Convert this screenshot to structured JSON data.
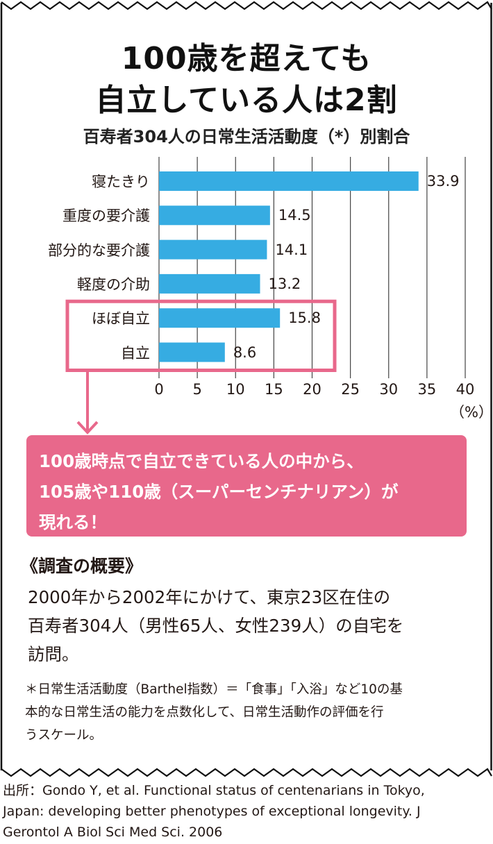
{
  "header": {
    "title_line1": "100歳を超えても",
    "title_line2": "自立している人は2割",
    "subtitle": "百寿者304人の日常生活活動度（*）別割合"
  },
  "chart_data": {
    "type": "bar",
    "orientation": "horizontal",
    "title": "百寿者304人の日常生活活動度（*）別割合",
    "categories": [
      "寝たきり",
      "重度の要介護",
      "部分的な要介護",
      "軽度の介助",
      "ほぼ自立",
      "自立"
    ],
    "values": [
      33.9,
      14.5,
      14.1,
      13.2,
      15.8,
      8.6
    ],
    "value_labels": [
      "33.9",
      "14.5",
      "14.1",
      "13.2",
      "15.8",
      "8.6"
    ],
    "xlabel": "",
    "ylabel": "",
    "unit_label": "（%）",
    "xlim": [
      0,
      40
    ],
    "xticks": [
      0,
      5,
      10,
      15,
      20,
      25,
      30,
      35,
      40
    ],
    "xtick_labels": [
      "0",
      "5",
      "10",
      "15",
      "20",
      "25",
      "30",
      "35",
      "40"
    ],
    "grid": true,
    "highlighted_categories": [
      "ほぼ自立",
      "自立"
    ],
    "colors": {
      "bar": "#36ace2",
      "highlight": "#e8688b",
      "grid": "#444444"
    }
  },
  "callout": {
    "lines": [
      "100歳時点で自立できている人の中から、",
      "105歳や110歳（スーパーセンチナリアン）が",
      "現れる！"
    ]
  },
  "overview": {
    "heading": "《調査の概要》",
    "lines": [
      "2000年から2002年にかけて、東京23区在住の",
      "百寿者304人（男性65人、女性239人）の自宅を",
      "訪問。"
    ]
  },
  "footnote": {
    "lines": [
      "＊日常生活活動度（Barthel指数）＝「食事」「入浴」など10の基",
      "本的な日常生活の能力を点数化して、日常生活動作の評価を行",
      "うスケール。"
    ]
  },
  "source": {
    "lines": [
      "出所：Gondo Y, et al. Functional status of centenarians in Tokyo,",
      "Japan: developing better phenotypes of exceptional longevity. J",
      "Gerontol A Biol Sci Med Sci. 2006"
    ]
  }
}
